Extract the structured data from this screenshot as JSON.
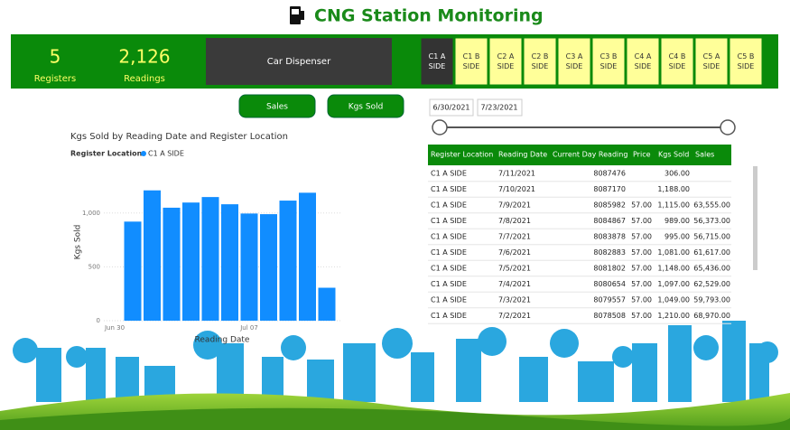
{
  "header": {
    "title": "CNG Station Monitoring"
  },
  "kpis": [
    {
      "value": "5",
      "label": "Registers"
    },
    {
      "value": "2,126",
      "label": "Readings"
    }
  ],
  "dispenser": "Car Dispenser",
  "slicer": [
    "C1 A SIDE",
    "C1 B SIDE",
    "C2 A SIDE",
    "C2 B SIDE",
    "C3 A SIDE",
    "C3 B SIDE",
    "C4 A SIDE",
    "C4 B SIDE",
    "C5 A SIDE",
    "C5 B SIDE"
  ],
  "buttons": [
    "Sales",
    "Kgs Sold"
  ],
  "date_range": [
    "6/30/2021",
    "7/23/2021"
  ],
  "chart_data": {
    "type": "bar",
    "title": "Kgs Sold by Reading Date and Register Location",
    "legend_title": "Register Location",
    "x_label": "Reading Date",
    "y_label": "Kgs Sold",
    "series": [
      {
        "name": "C1 A SIDE",
        "color": "#118dff",
        "values": [
          920,
          1210,
          1049,
          1097,
          1148,
          1081,
          995,
          989,
          1115,
          1188,
          306
        ]
      }
    ],
    "xticks": [
      "Jun 30",
      "Jul 07"
    ],
    "ylim": [
      0,
      1300
    ],
    "yticks": [
      0,
      500,
      {
        "value": 1000,
        "label": "1,000"
      }
    ]
  },
  "table": {
    "columns": [
      "Register Location",
      "Reading Date",
      "Current Day Reading",
      "Price",
      "Kgs Sold",
      "Sales"
    ],
    "rows": [
      [
        "C1 A SIDE",
        "7/11/2021",
        "8087476",
        null,
        "306.00",
        null
      ],
      [
        "C1 A SIDE",
        "7/10/2021",
        "8087170",
        null,
        "1,188.00",
        null
      ],
      [
        "C1 A SIDE",
        "7/9/2021",
        "8085982",
        "57.00",
        "1,115.00",
        "63,555.00"
      ],
      [
        "C1 A SIDE",
        "7/8/2021",
        "8084867",
        "57.00",
        "989.00",
        "56,373.00"
      ],
      [
        "C1 A SIDE",
        "7/7/2021",
        "8083878",
        "57.00",
        "995.00",
        "56,715.00"
      ],
      [
        "C1 A SIDE",
        "7/6/2021",
        "8082883",
        "57.00",
        "1,081.00",
        "61,617.00"
      ],
      [
        "C1 A SIDE",
        "7/5/2021",
        "8081802",
        "57.00",
        "1,148.00",
        "65,436.00"
      ],
      [
        "C1 A SIDE",
        "7/4/2021",
        "8080654",
        "57.00",
        "1,097.00",
        "62,529.00"
      ],
      [
        "C1 A SIDE",
        "7/3/2021",
        "8079557",
        "57.00",
        "1,049.00",
        "59,793.00"
      ],
      [
        "C1 A SIDE",
        "7/2/2021",
        "8078508",
        "57.00",
        "1,210.00",
        "68,970.00"
      ]
    ]
  }
}
